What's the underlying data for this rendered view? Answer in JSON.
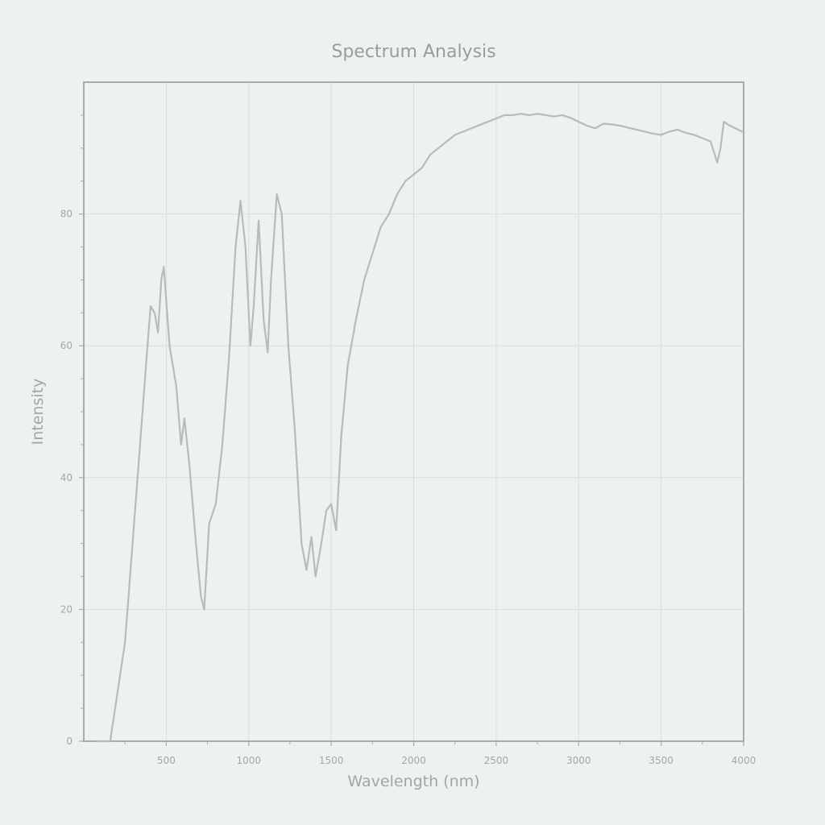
{
  "chart_data": {
    "type": "line",
    "title": "Spectrum Analysis",
    "xlabel": "Wavelength (nm)",
    "ylabel": "Intensity",
    "xlim": [
      0,
      4000
    ],
    "ylim": [
      0,
      100
    ],
    "x_ticks": [
      500,
      1000,
      1500,
      2000,
      2500,
      3000,
      3500,
      4000
    ],
    "y_ticks": [
      0,
      20,
      40,
      60,
      80
    ],
    "grid": true,
    "legend": "none",
    "colors": {
      "background": "#eef2ef",
      "frame": "#a9aca9",
      "grid": "#d7dfdc",
      "line": "#b8bbb8"
    },
    "series": [
      {
        "points": [
          [
            80,
            0
          ],
          [
            160,
            0
          ],
          [
            250,
            15
          ],
          [
            320,
            38
          ],
          [
            380,
            58
          ],
          [
            405,
            66
          ],
          [
            430,
            65
          ],
          [
            450,
            62
          ],
          [
            470,
            70
          ],
          [
            485,
            72
          ],
          [
            520,
            60
          ],
          [
            560,
            54
          ],
          [
            590,
            45
          ],
          [
            610,
            49
          ],
          [
            640,
            42
          ],
          [
            680,
            30
          ],
          [
            710,
            22
          ],
          [
            730,
            20
          ],
          [
            760,
            33
          ],
          [
            800,
            36
          ],
          [
            840,
            45
          ],
          [
            880,
            58
          ],
          [
            920,
            75
          ],
          [
            950,
            82
          ],
          [
            980,
            75
          ],
          [
            1010,
            60
          ],
          [
            1030,
            66
          ],
          [
            1060,
            79
          ],
          [
            1090,
            64
          ],
          [
            1115,
            59
          ],
          [
            1135,
            70
          ],
          [
            1170,
            83
          ],
          [
            1200,
            80
          ],
          [
            1240,
            60
          ],
          [
            1280,
            47
          ],
          [
            1320,
            30
          ],
          [
            1350,
            26
          ],
          [
            1380,
            31
          ],
          [
            1405,
            25
          ],
          [
            1440,
            30
          ],
          [
            1470,
            35
          ],
          [
            1500,
            36
          ],
          [
            1530,
            32
          ],
          [
            1560,
            46
          ],
          [
            1600,
            57
          ],
          [
            1650,
            64
          ],
          [
            1700,
            70
          ],
          [
            1750,
            74
          ],
          [
            1800,
            78
          ],
          [
            1850,
            80
          ],
          [
            1900,
            83
          ],
          [
            1950,
            85
          ],
          [
            2000,
            86
          ],
          [
            2050,
            87
          ],
          [
            2100,
            89
          ],
          [
            2150,
            90
          ],
          [
            2200,
            91
          ],
          [
            2250,
            92
          ],
          [
            2300,
            92.5
          ],
          [
            2350,
            93
          ],
          [
            2400,
            93.5
          ],
          [
            2450,
            94
          ],
          [
            2500,
            94.5
          ],
          [
            2550,
            95
          ],
          [
            2600,
            95
          ],
          [
            2650,
            95.2
          ],
          [
            2700,
            95
          ],
          [
            2750,
            95.2
          ],
          [
            2800,
            95
          ],
          [
            2850,
            94.8
          ],
          [
            2900,
            95
          ],
          [
            2950,
            94.6
          ],
          [
            3000,
            94
          ],
          [
            3050,
            93.4
          ],
          [
            3100,
            93
          ],
          [
            3150,
            93.7
          ],
          [
            3200,
            93.6
          ],
          [
            3250,
            93.4
          ],
          [
            3300,
            93.1
          ],
          [
            3350,
            92.8
          ],
          [
            3400,
            92.5
          ],
          [
            3450,
            92.2
          ],
          [
            3500,
            92
          ],
          [
            3550,
            92.5
          ],
          [
            3600,
            92.8
          ],
          [
            3650,
            92.3
          ],
          [
            3700,
            92
          ],
          [
            3750,
            91.5
          ],
          [
            3800,
            91
          ],
          [
            3825,
            89
          ],
          [
            3840,
            87.8
          ],
          [
            3860,
            90
          ],
          [
            3880,
            94
          ],
          [
            3910,
            93.5
          ],
          [
            3950,
            93
          ],
          [
            3990,
            92.5
          ]
        ]
      }
    ]
  }
}
